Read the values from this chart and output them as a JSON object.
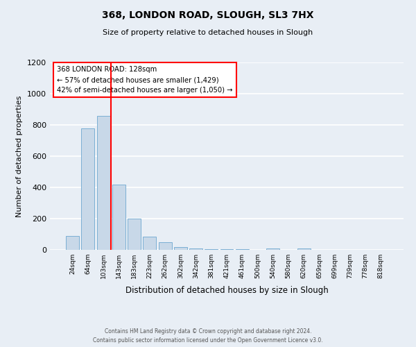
{
  "title": "368, LONDON ROAD, SLOUGH, SL3 7HX",
  "subtitle": "Size of property relative to detached houses in Slough",
  "xlabel": "Distribution of detached houses by size in Slough",
  "ylabel": "Number of detached properties",
  "categories": [
    "24sqm",
    "64sqm",
    "103sqm",
    "143sqm",
    "183sqm",
    "223sqm",
    "262sqm",
    "302sqm",
    "342sqm",
    "381sqm",
    "421sqm",
    "461sqm",
    "500sqm",
    "540sqm",
    "580sqm",
    "620sqm",
    "659sqm",
    "699sqm",
    "739sqm",
    "778sqm",
    "818sqm"
  ],
  "bar_heights": [
    90,
    780,
    860,
    420,
    200,
    85,
    50,
    20,
    10,
    5,
    5,
    5,
    0,
    10,
    0,
    10,
    0,
    0,
    0,
    0,
    0
  ],
  "bar_color": "#c8d8e8",
  "bar_edge_color": "#7bafd4",
  "vline_x_index": 2.5,
  "vline_color": "red",
  "ylim": [
    0,
    1200
  ],
  "yticks": [
    0,
    200,
    400,
    600,
    800,
    1000,
    1200
  ],
  "annotation_title": "368 LONDON ROAD: 128sqm",
  "annotation_line1": "← 57% of detached houses are smaller (1,429)",
  "annotation_line2": "42% of semi-detached houses are larger (1,050) →",
  "annotation_box_color": "white",
  "annotation_box_edgecolor": "red",
  "footer_line1": "Contains HM Land Registry data © Crown copyright and database right 2024.",
  "footer_line2": "Contains public sector information licensed under the Open Government Licence v3.0.",
  "background_color": "#e8eef5",
  "grid_color": "white"
}
